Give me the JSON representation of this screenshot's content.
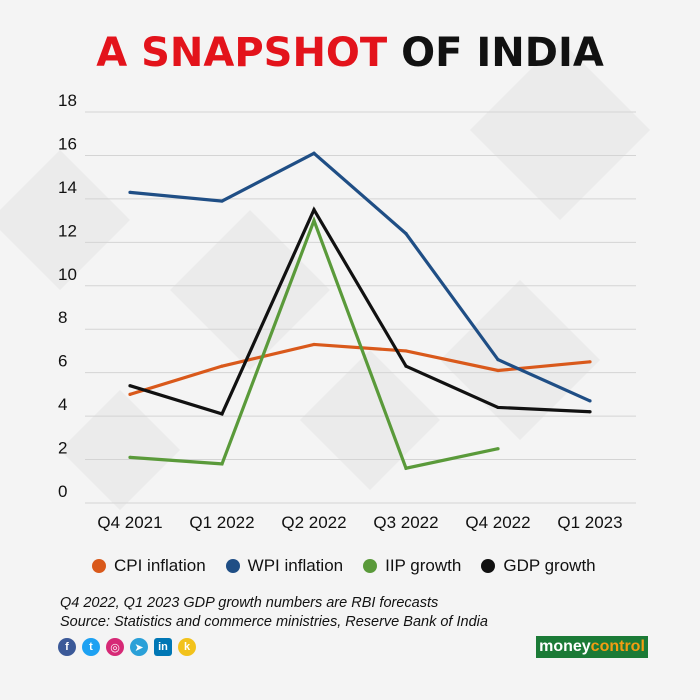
{
  "title": {
    "part1": "A SNAPSHOT",
    "part2": " OF INDIA"
  },
  "chart_data": {
    "type": "line",
    "title": "A SNAPSHOT OF INDIA",
    "categories": [
      "Q4 2021",
      "Q1 2022",
      "Q2 2022",
      "Q3 2022",
      "Q4 2022",
      "Q1 2023"
    ],
    "ylim": [
      0,
      18
    ],
    "yticks": [
      0,
      2,
      4,
      6,
      8,
      10,
      12,
      14,
      16,
      18
    ],
    "grid": true,
    "series": [
      {
        "name": "CPI inflation",
        "color": "#d9591b",
        "values": [
          5.0,
          6.3,
          7.3,
          7.0,
          6.1,
          6.5
        ]
      },
      {
        "name": "WPI inflation",
        "color": "#1f4e85",
        "values": [
          14.3,
          13.9,
          16.1,
          12.4,
          6.6,
          4.7
        ]
      },
      {
        "name": "IIP growth",
        "color": "#5a9a3a",
        "values": [
          2.1,
          1.8,
          13.0,
          1.6,
          2.5,
          null
        ]
      },
      {
        "name": "GDP growth",
        "color": "#111111",
        "values": [
          5.4,
          4.1,
          13.5,
          6.3,
          4.4,
          4.2
        ]
      }
    ]
  },
  "legend": [
    {
      "label": "CPI inflation",
      "color": "#d9591b"
    },
    {
      "label": "WPI inflation",
      "color": "#1f4e85"
    },
    {
      "label": "IIP growth",
      "color": "#5a9a3a"
    },
    {
      "label": "GDP growth",
      "color": "#111111"
    }
  ],
  "notes": {
    "line1": "Q4 2022, Q1 2023 GDP growth numbers are RBI forecasts",
    "line2": "Source: Statistics and commerce ministries, Reserve Bank of India"
  },
  "social": [
    {
      "name": "facebook-icon",
      "glyph": "f",
      "color": "#3b5998"
    },
    {
      "name": "twitter-icon",
      "glyph": "t",
      "color": "#1da1f2"
    },
    {
      "name": "instagram-icon",
      "glyph": "◎",
      "color": "#d62976"
    },
    {
      "name": "telegram-icon",
      "glyph": "➤",
      "color": "#2aa0d8"
    },
    {
      "name": "linkedin-icon",
      "glyph": "in",
      "color": "#0077b5"
    },
    {
      "name": "koo-icon",
      "glyph": "k",
      "color": "#f2c21b"
    }
  ],
  "brand": {
    "part1": "money",
    "part2": "control"
  }
}
